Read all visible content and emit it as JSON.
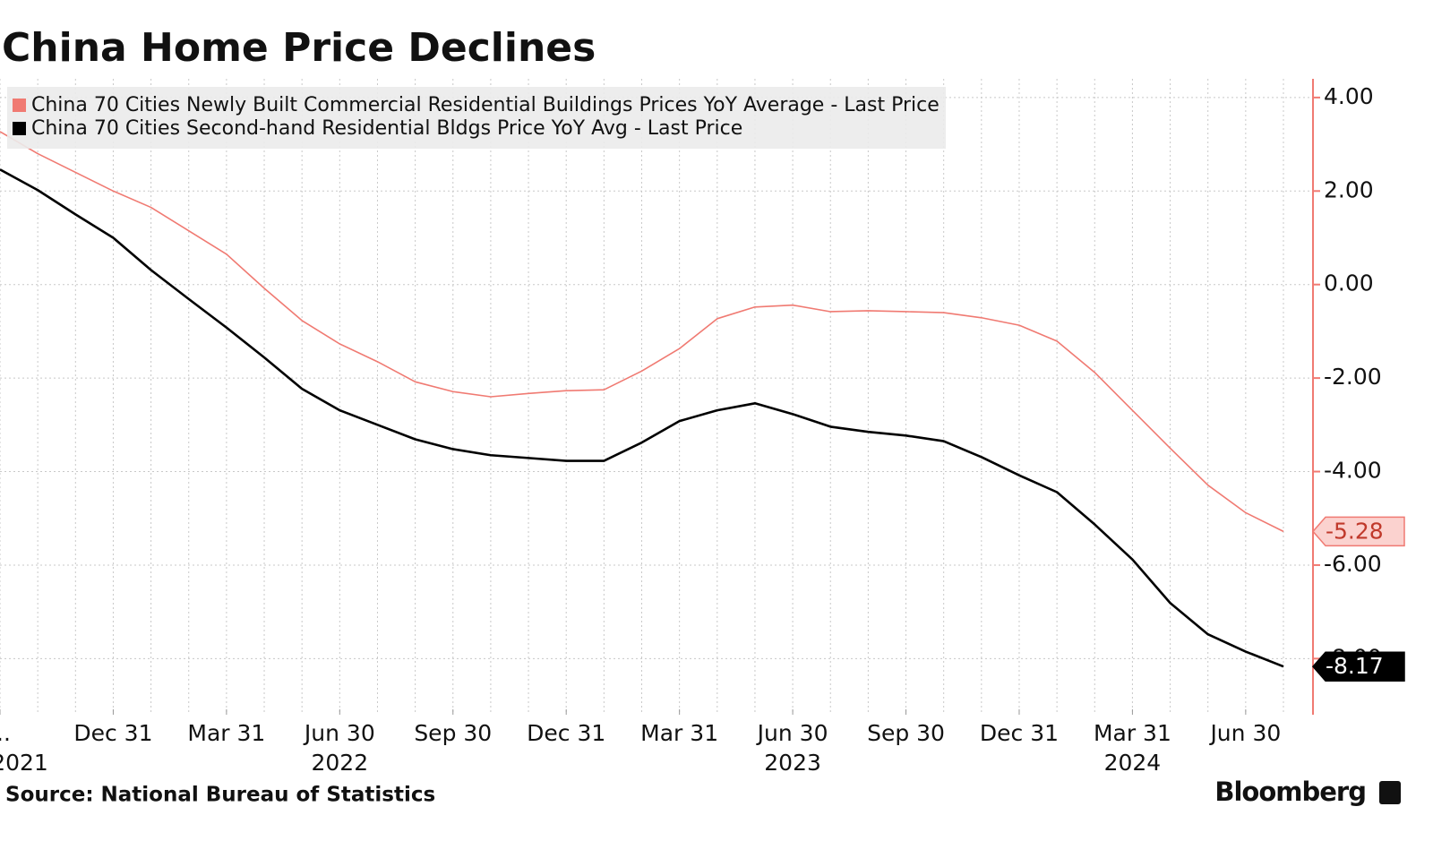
{
  "chart_data": {
    "type": "line",
    "title": "China Home Price Declines",
    "source": "Source: National Bureau of Statistics",
    "brand": "Bloomberg",
    "x": [
      "2021-09-30",
      "2021-10-31",
      "2021-11-30",
      "2021-12-31",
      "2022-01-31",
      "2022-02-28",
      "2022-03-31",
      "2022-04-30",
      "2022-05-31",
      "2022-06-30",
      "2022-07-31",
      "2022-08-31",
      "2022-09-30",
      "2022-10-31",
      "2022-11-30",
      "2022-12-31",
      "2023-01-31",
      "2023-02-28",
      "2023-03-31",
      "2023-04-30",
      "2023-05-31",
      "2023-06-30",
      "2023-07-31",
      "2023-08-31",
      "2023-09-30",
      "2023-10-31",
      "2023-11-30",
      "2023-12-31",
      "2024-01-31",
      "2024-02-29",
      "2024-03-31",
      "2024-04-30",
      "2024-05-31",
      "2024-06-30",
      "2024-07-31"
    ],
    "series": [
      {
        "name": "China 70 Cities Newly Built Commercial Residential Buildings Prices YoY Average - Last Price",
        "color": "#f07a72",
        "last_label": "-5.28",
        "values": [
          3.27,
          2.8,
          2.4,
          2.0,
          1.65,
          1.15,
          0.65,
          -0.08,
          -0.77,
          -1.27,
          -1.65,
          -2.08,
          -2.29,
          -2.4,
          -2.33,
          -2.27,
          -2.25,
          -1.85,
          -1.37,
          -0.73,
          -0.48,
          -0.44,
          -0.58,
          -0.56,
          -0.58,
          -0.6,
          -0.71,
          -0.87,
          -1.21,
          -1.88,
          -2.69,
          -3.5,
          -4.29,
          -4.88,
          -5.28
        ]
      },
      {
        "name": "China 70 Cities Second-hand Residential Bldgs Price YoY Avg - Last Price",
        "color": "#000000",
        "last_label": "-8.17",
        "values": [
          2.46,
          2.02,
          1.5,
          1.0,
          0.31,
          -0.31,
          -0.92,
          -1.56,
          -2.23,
          -2.69,
          -3.0,
          -3.31,
          -3.52,
          -3.65,
          -3.71,
          -3.77,
          -3.77,
          -3.38,
          -2.92,
          -2.69,
          -2.54,
          -2.77,
          -3.04,
          -3.15,
          -3.23,
          -3.35,
          -3.69,
          -4.08,
          -4.44,
          -5.13,
          -5.88,
          -6.81,
          -7.48,
          -7.85,
          -8.17
        ]
      }
    ],
    "ylim": [
      -9.2,
      4.4
    ],
    "yticks": [
      {
        "value": 4,
        "label": "4.00"
      },
      {
        "value": 2,
        "label": "2.00"
      },
      {
        "value": 0,
        "label": "0.00"
      },
      {
        "value": -2,
        "label": "-2.00"
      },
      {
        "value": -4,
        "label": "-4.00"
      },
      {
        "value": -6,
        "label": "-6.00"
      },
      {
        "value": -8,
        "label": "-8.00"
      }
    ],
    "xticks": [
      {
        "value": "2021-09-30",
        "label": "...",
        "year": "2021"
      },
      {
        "value": "2021-12-31",
        "label": "Dec 31"
      },
      {
        "value": "2022-03-31",
        "label": "Mar 31"
      },
      {
        "value": "2022-06-30",
        "label": "Jun 30",
        "year": "2022"
      },
      {
        "value": "2022-09-30",
        "label": "Sep 30"
      },
      {
        "value": "2022-12-31",
        "label": "Dec 31"
      },
      {
        "value": "2023-03-31",
        "label": "Mar 31"
      },
      {
        "value": "2023-06-30",
        "label": "Jun 30",
        "year": "2023"
      },
      {
        "value": "2023-09-30",
        "label": "Sep 30"
      },
      {
        "value": "2023-12-31",
        "label": "Dec 31"
      },
      {
        "value": "2024-03-31",
        "label": "Mar 31",
        "year": "2024"
      },
      {
        "value": "2024-06-30",
        "label": "Jun 30"
      }
    ],
    "grid": true,
    "legend": "upper left"
  }
}
